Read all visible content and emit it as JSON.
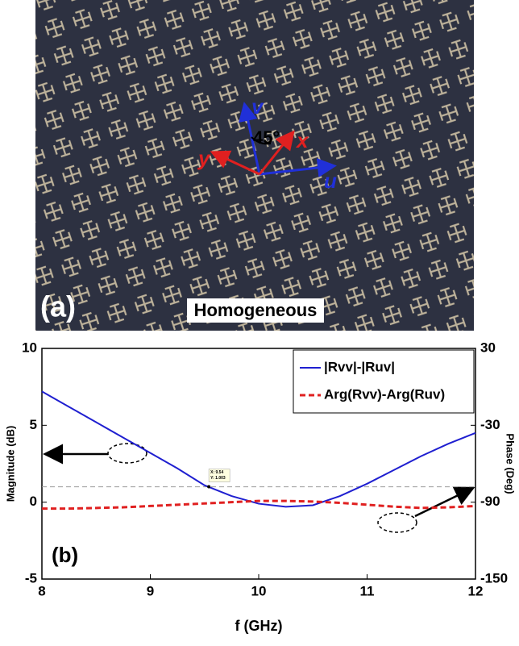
{
  "figure_a": {
    "panel_label": "(a)",
    "caption": "Homogeneous",
    "axis_v": "v",
    "axis_x": "x",
    "axis_y": "y",
    "axis_u": "u",
    "angle": "45°"
  },
  "chart_data": {
    "type": "line",
    "panel_label": "(b)",
    "xlabel": "f (GHz)",
    "ylabel": "Magnitude (dB)",
    "y2label": "Phase (Deg)",
    "x": [
      8,
      8.25,
      8.5,
      8.75,
      9,
      9.25,
      9.5,
      9.75,
      10,
      10.25,
      10.5,
      10.75,
      11,
      11.25,
      11.5,
      11.75,
      12
    ],
    "series": [
      {
        "name": "|Rvv|-|Ruv|",
        "color": "#1f1fd0",
        "dash": "solid",
        "axis": "y",
        "values": [
          7.2,
          6.2,
          5.2,
          4.2,
          3.2,
          2.2,
          1.1,
          0.4,
          -0.1,
          -0.3,
          -0.2,
          0.4,
          1.2,
          2.1,
          3.0,
          3.8,
          4.5
        ]
      },
      {
        "name": "Arg(Rvv)-Arg(Ruv)",
        "color": "#e02020",
        "dash": "dashed",
        "axis": "y2",
        "values": [
          -95,
          -95,
          -94.5,
          -94,
          -93,
          -92,
          -91,
          -90,
          -89,
          -89,
          -89.5,
          -90.5,
          -92,
          -93.5,
          -94.5,
          -94,
          -93
        ]
      }
    ],
    "xlim": [
      8,
      12
    ],
    "xticks": [
      8,
      9,
      10,
      11,
      12
    ],
    "ylim": [
      -5,
      10
    ],
    "yticks": [
      -5,
      0,
      5,
      10
    ],
    "y2lim": [
      -150,
      30
    ],
    "y2ticks": [
      -150,
      -90,
      -30,
      30
    ],
    "hline": 1,
    "datatip": {
      "x": 9.54,
      "y": 1.003,
      "x_label": "X: 9.54",
      "y_label": "Y: 1.003"
    },
    "legend": "upper right"
  }
}
